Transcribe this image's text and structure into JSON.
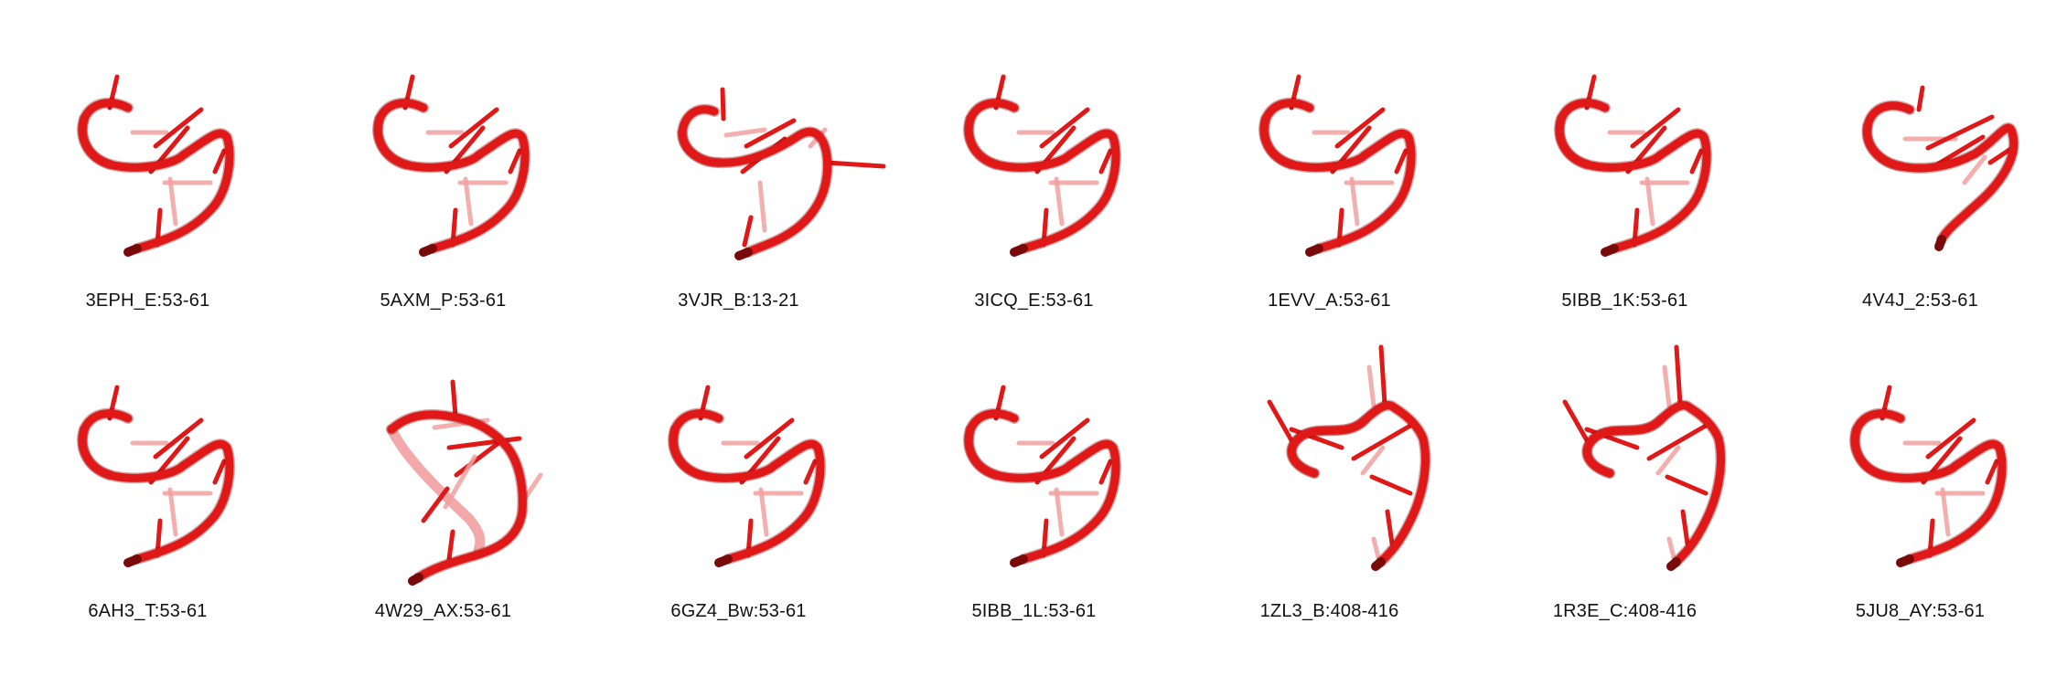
{
  "structure_color": "#e01818",
  "structure_color_dark": "#7a0a0a",
  "structure_color_light": "#f2a0a0",
  "rows": [
    [
      {
        "label": "3EPH_E:53-61",
        "variant": 0
      },
      {
        "label": "5AXM_P:53-61",
        "variant": 0
      },
      {
        "label": "3VJR_B:13-21",
        "variant": 1
      },
      {
        "label": "3ICQ_E:53-61",
        "variant": 0
      },
      {
        "label": "1EVV_A:53-61",
        "variant": 0
      },
      {
        "label": "5IBB_1K:53-61",
        "variant": 0
      },
      {
        "label": "4V4J_2:53-61",
        "variant": 2
      }
    ],
    [
      {
        "label": "6AH3_T:53-61",
        "variant": 0
      },
      {
        "label": "4W29_AX:53-61",
        "variant": 3
      },
      {
        "label": "6GZ4_Bw:53-61",
        "variant": 0
      },
      {
        "label": "5IBB_1L:53-61",
        "variant": 0
      },
      {
        "label": "1ZL3_B:408-416",
        "variant": 4
      },
      {
        "label": "1R3E_C:408-416",
        "variant": 4
      },
      {
        "label": "5JU8_AY:53-61",
        "variant": 0
      }
    ]
  ]
}
